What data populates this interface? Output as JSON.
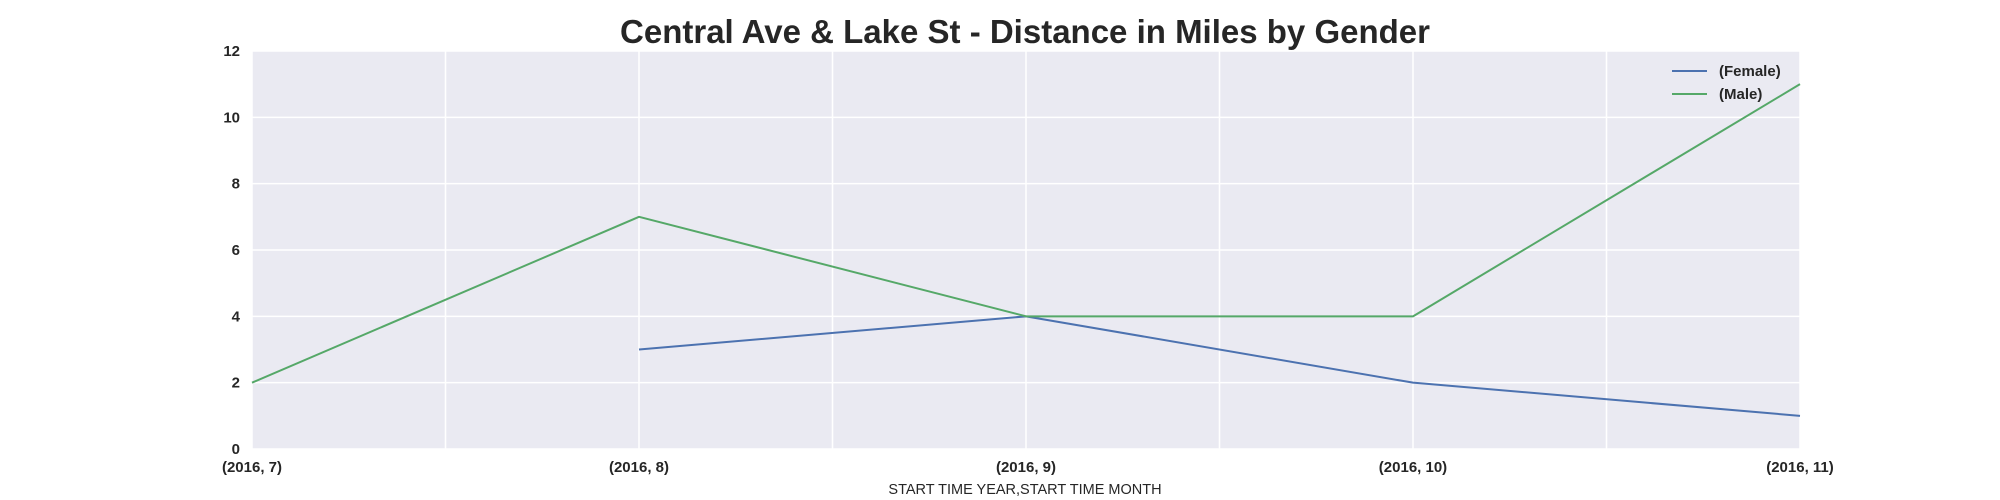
{
  "chart_data": {
    "type": "line",
    "title": "Central Ave & Lake St - Distance in Miles by Gender",
    "xlabel": "START TIME YEAR,START TIME MONTH",
    "ylabel": "",
    "categories": [
      "(2016, 7)",
      "(2016, 8)",
      "(2016, 9)",
      "(2016, 10)",
      "(2016, 11)"
    ],
    "ylim": [
      0,
      12
    ],
    "yticks": [
      0,
      2,
      4,
      6,
      8,
      10,
      12
    ],
    "grid": true,
    "legend_position": "top-right",
    "series": [
      {
        "name": "(Female)",
        "color": "#4c72b0",
        "values": [
          null,
          3,
          4,
          2,
          1
        ]
      },
      {
        "name": "(Male)",
        "color": "#55a868",
        "values": [
          2,
          7,
          4,
          4,
          11
        ]
      }
    ],
    "background_color": "#eaeaf2",
    "grid_color": "#ffffff"
  }
}
